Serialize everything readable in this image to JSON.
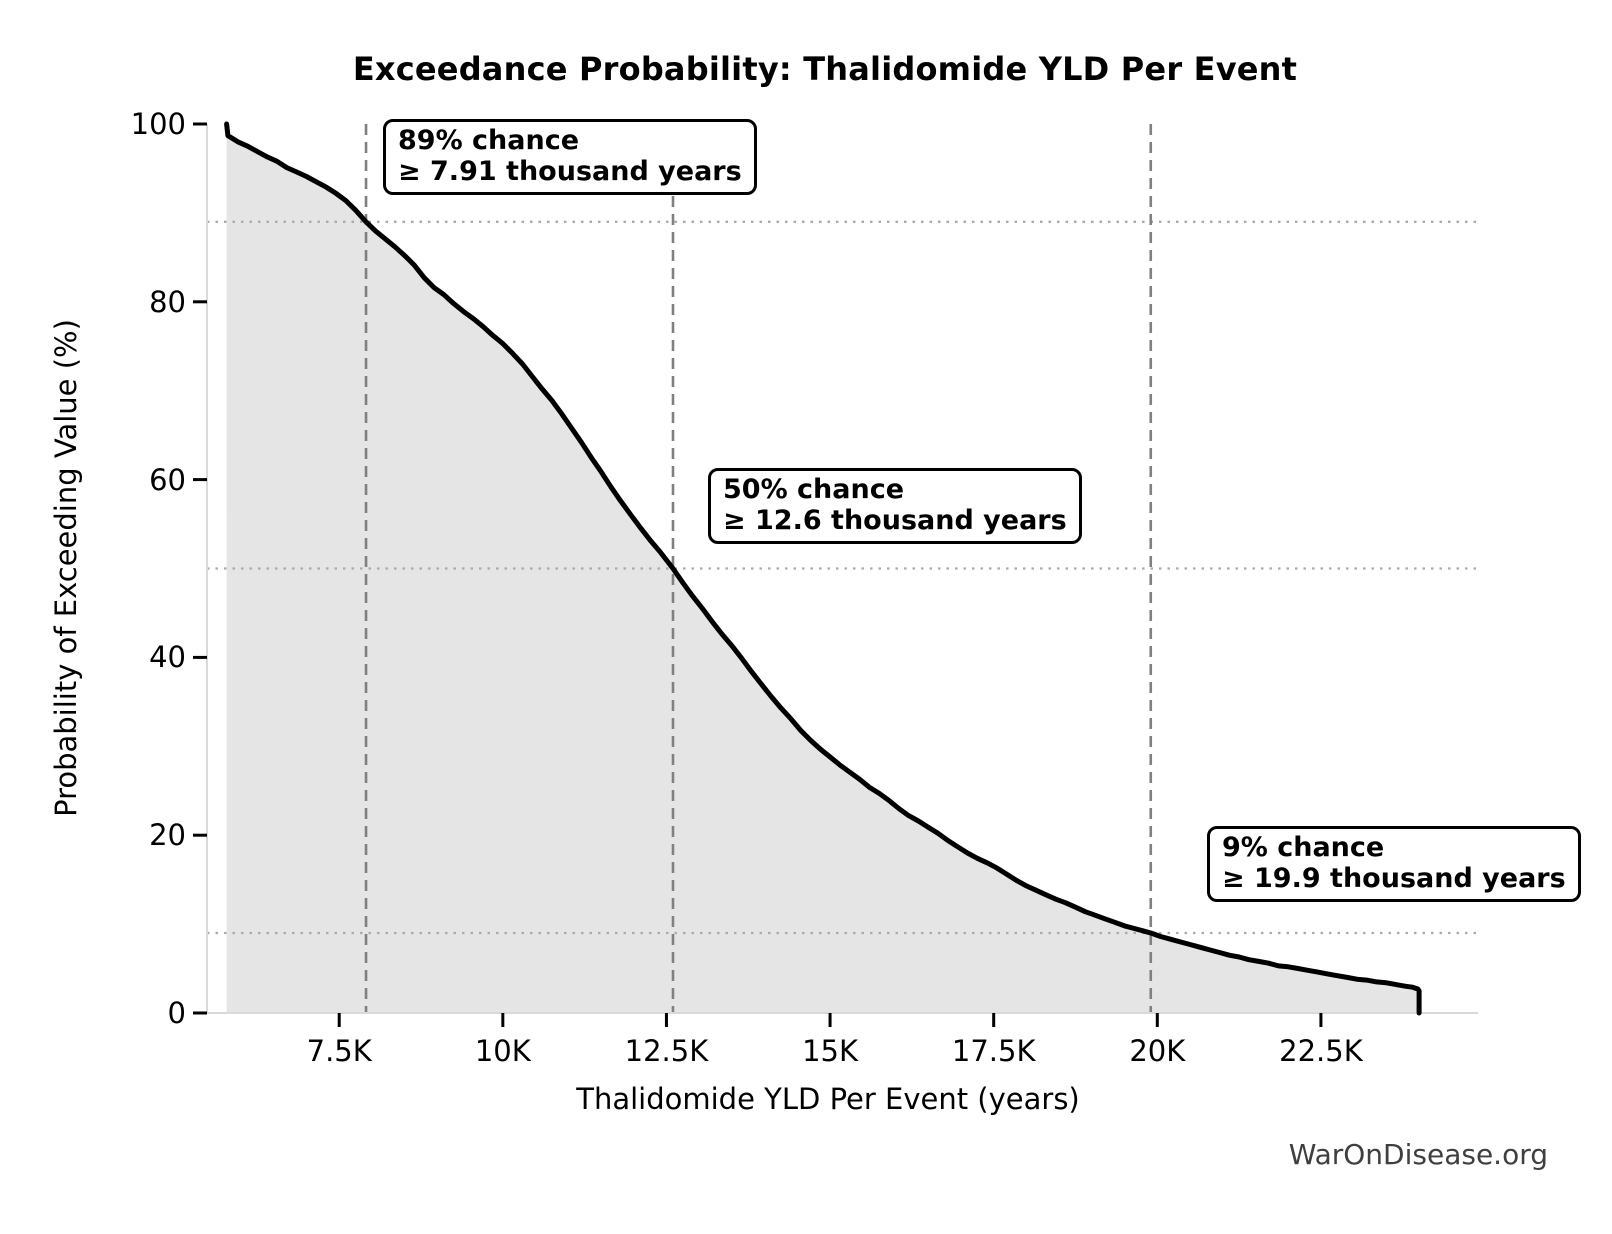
{
  "title": "Exceedance Probability: Thalidomide YLD Per Event",
  "watermark": "WarOnDisease.org",
  "chart_data": {
    "type": "line",
    "title": "Exceedance Probability: Thalidomide YLD Per Event",
    "xlabel": "Thalidomide YLD Per Event (years)",
    "ylabel": "Probability of Exceeding Value (%)",
    "legend": "none",
    "grid": "reference lines only",
    "xlim": [
      5480,
      24900
    ],
    "ylim": [
      0,
      100
    ],
    "x_ticks": [
      {
        "value": 7500,
        "label": "7.5K"
      },
      {
        "value": 10000,
        "label": "10K"
      },
      {
        "value": 12500,
        "label": "12.5K"
      },
      {
        "value": 15000,
        "label": "15K"
      },
      {
        "value": 17500,
        "label": "17.5K"
      },
      {
        "value": 20000,
        "label": "20K"
      },
      {
        "value": 22500,
        "label": "22.5K"
      }
    ],
    "y_ticks": [
      {
        "value": 0,
        "label": "0"
      },
      {
        "value": 20,
        "label": "20"
      },
      {
        "value": 40,
        "label": "40"
      },
      {
        "value": 60,
        "label": "60"
      },
      {
        "value": 80,
        "label": "80"
      },
      {
        "value": 100,
        "label": "100"
      }
    ],
    "annotations": [
      {
        "x": 7910,
        "y": 89,
        "line1": "89% chance",
        "line2": "≥ 7.91 thousand years"
      },
      {
        "x": 12600,
        "y": 50,
        "line1": "50% chance",
        "line2": "≥ 12.6 thousand years"
      },
      {
        "x": 19900,
        "y": 9,
        "line1": "9% chance",
        "line2": "≥ 19.9 thousand years"
      }
    ],
    "colors": {
      "curve": "#000000",
      "fill": "#e5e5e5",
      "dashed_vline": "#808080",
      "dotted_hline": "#aaaaaa",
      "spine": "#d9d9d9",
      "tick_mark": "#000000",
      "watermark": "#3f3f3f"
    },
    "series": [
      {
        "name": "exceedance probability",
        "points": [
          [
            5780,
            100
          ],
          [
            5800,
            98.7
          ],
          [
            5950,
            98.0
          ],
          [
            6100,
            97.5
          ],
          [
            6250,
            96.9
          ],
          [
            6400,
            96.3
          ],
          [
            6550,
            95.8
          ],
          [
            6700,
            95.1
          ],
          [
            6850,
            94.6
          ],
          [
            7000,
            94.1
          ],
          [
            7150,
            93.5
          ],
          [
            7300,
            92.9
          ],
          [
            7450,
            92.2
          ],
          [
            7600,
            91.4
          ],
          [
            7750,
            90.3
          ],
          [
            7910,
            89.0
          ],
          [
            8050,
            88.0
          ],
          [
            8200,
            87.1
          ],
          [
            8350,
            86.2
          ],
          [
            8500,
            85.2
          ],
          [
            8650,
            84.1
          ],
          [
            8800,
            82.7
          ],
          [
            8950,
            81.6
          ],
          [
            9100,
            80.8
          ],
          [
            9250,
            79.8
          ],
          [
            9400,
            78.9
          ],
          [
            9550,
            78.1
          ],
          [
            9700,
            77.2
          ],
          [
            9850,
            76.2
          ],
          [
            10000,
            75.3
          ],
          [
            10150,
            74.2
          ],
          [
            10300,
            73.0
          ],
          [
            10450,
            71.6
          ],
          [
            10600,
            70.2
          ],
          [
            10750,
            68.9
          ],
          [
            10900,
            67.4
          ],
          [
            11050,
            65.8
          ],
          [
            11200,
            64.2
          ],
          [
            11350,
            62.5
          ],
          [
            11500,
            60.9
          ],
          [
            11650,
            59.2
          ],
          [
            11800,
            57.6
          ],
          [
            11950,
            56.1
          ],
          [
            12100,
            54.6
          ],
          [
            12250,
            53.2
          ],
          [
            12400,
            51.9
          ],
          [
            12600,
            50.0
          ],
          [
            12750,
            48.4
          ],
          [
            12900,
            46.9
          ],
          [
            13050,
            45.5
          ],
          [
            13200,
            44.0
          ],
          [
            13350,
            42.6
          ],
          [
            13500,
            41.3
          ],
          [
            13650,
            39.9
          ],
          [
            13800,
            38.4
          ],
          [
            13950,
            37.0
          ],
          [
            14100,
            35.6
          ],
          [
            14250,
            34.3
          ],
          [
            14400,
            33.1
          ],
          [
            14550,
            31.8
          ],
          [
            14700,
            30.7
          ],
          [
            14850,
            29.7
          ],
          [
            15000,
            28.8
          ],
          [
            15150,
            27.9
          ],
          [
            15300,
            27.1
          ],
          [
            15450,
            26.3
          ],
          [
            15600,
            25.4
          ],
          [
            15750,
            24.7
          ],
          [
            15900,
            23.9
          ],
          [
            16050,
            23.0
          ],
          [
            16200,
            22.2
          ],
          [
            16350,
            21.6
          ],
          [
            16500,
            20.9
          ],
          [
            16650,
            20.2
          ],
          [
            16800,
            19.4
          ],
          [
            16950,
            18.7
          ],
          [
            17100,
            18.0
          ],
          [
            17250,
            17.4
          ],
          [
            17400,
            16.9
          ],
          [
            17550,
            16.3
          ],
          [
            17700,
            15.6
          ],
          [
            17850,
            14.9
          ],
          [
            18000,
            14.3
          ],
          [
            18150,
            13.8
          ],
          [
            18300,
            13.3
          ],
          [
            18450,
            12.8
          ],
          [
            18600,
            12.4
          ],
          [
            18750,
            11.9
          ],
          [
            18900,
            11.4
          ],
          [
            19050,
            11.0
          ],
          [
            19200,
            10.6
          ],
          [
            19350,
            10.2
          ],
          [
            19500,
            9.8
          ],
          [
            19650,
            9.5
          ],
          [
            19800,
            9.2
          ],
          [
            19900,
            9.0
          ],
          [
            20050,
            8.6
          ],
          [
            20200,
            8.3
          ],
          [
            20350,
            8.0
          ],
          [
            20500,
            7.7
          ],
          [
            20650,
            7.4
          ],
          [
            20800,
            7.1
          ],
          [
            20950,
            6.8
          ],
          [
            21100,
            6.5
          ],
          [
            21250,
            6.3
          ],
          [
            21400,
            6.0
          ],
          [
            21550,
            5.8
          ],
          [
            21700,
            5.6
          ],
          [
            21850,
            5.3
          ],
          [
            22000,
            5.2
          ],
          [
            22150,
            5.0
          ],
          [
            22300,
            4.8
          ],
          [
            22450,
            4.6
          ],
          [
            22600,
            4.4
          ],
          [
            22750,
            4.2
          ],
          [
            22900,
            4.0
          ],
          [
            23050,
            3.8
          ],
          [
            23200,
            3.7
          ],
          [
            23350,
            3.5
          ],
          [
            23500,
            3.4
          ],
          [
            23650,
            3.2
          ],
          [
            23800,
            3.0
          ],
          [
            23900,
            2.9
          ],
          [
            23980,
            2.7
          ],
          [
            24000,
            2.5
          ],
          [
            24000,
            0
          ]
        ]
      }
    ]
  }
}
